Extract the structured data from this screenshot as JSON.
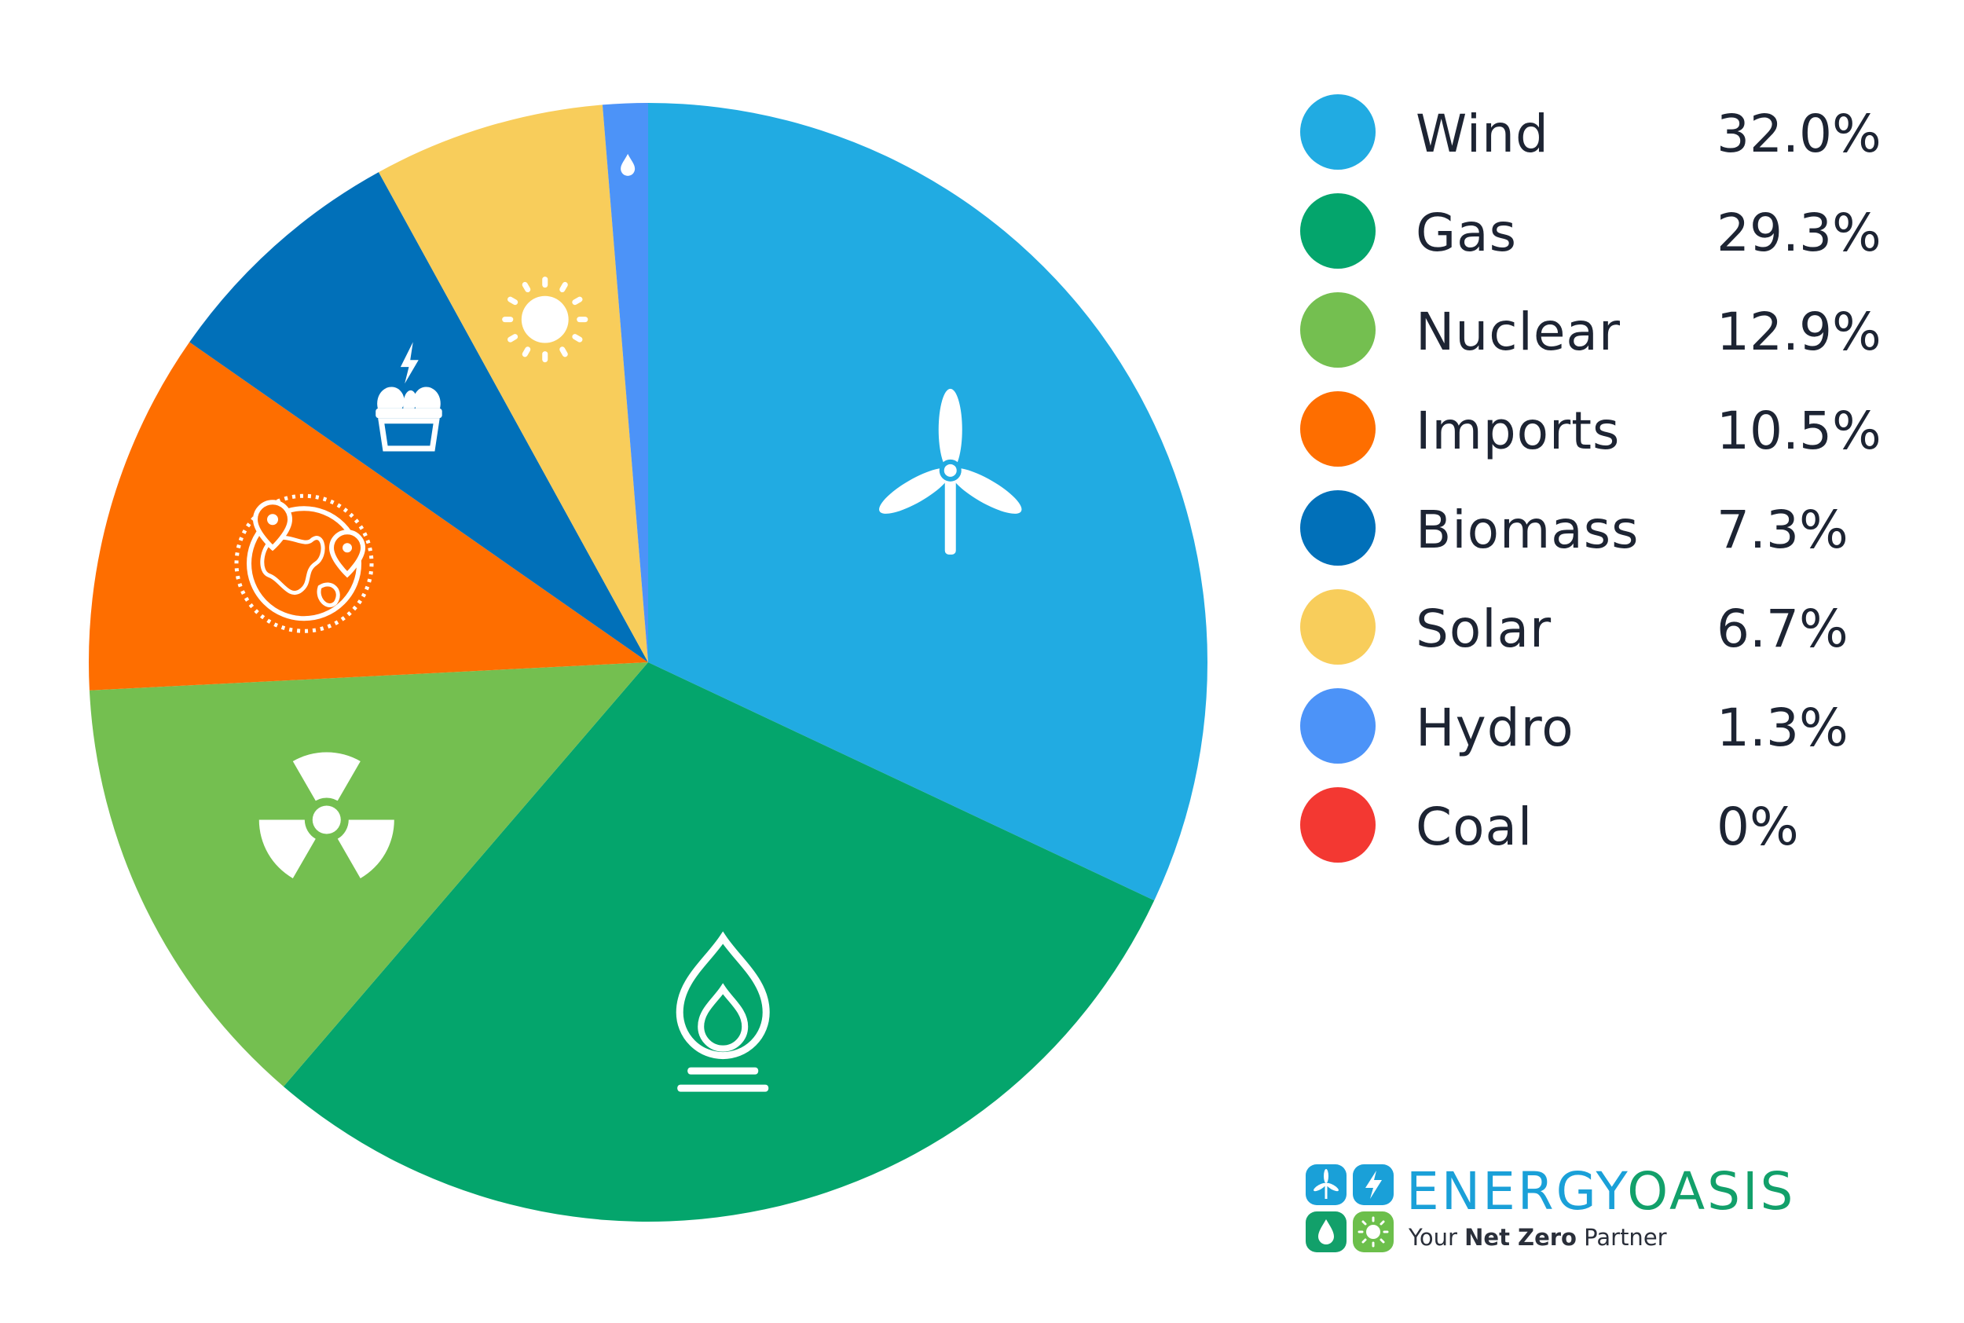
{
  "chart_data": {
    "type": "pie",
    "slices": [
      {
        "label": "Wind",
        "value": 32.0,
        "display": "32.0%",
        "color": "#21abe2",
        "icon": "wind-turbine-icon"
      },
      {
        "label": "Gas",
        "value": 29.3,
        "display": "29.3%",
        "color": "#04a56c",
        "icon": "gas-flame-icon"
      },
      {
        "label": "Nuclear",
        "value": 12.9,
        "display": "12.9%",
        "color": "#74bf50",
        "icon": "radiation-icon"
      },
      {
        "label": "Imports",
        "value": 10.5,
        "display": "10.5%",
        "color": "#fe6e00",
        "icon": "globe-pins-icon"
      },
      {
        "label": "Biomass",
        "value": 7.3,
        "display": "7.3%",
        "color": "#0170b9",
        "icon": "biomass-plant-icon"
      },
      {
        "label": "Solar",
        "value": 6.7,
        "display": "6.7%",
        "color": "#f8cd5b",
        "icon": "sun-icon"
      },
      {
        "label": "Hydro",
        "value": 1.3,
        "display": "1.3%",
        "color": "#4c93f8",
        "icon": "water-drop-icon"
      },
      {
        "label": "Coal",
        "value": 0,
        "display": "0%",
        "color": "#f33832",
        "icon": ""
      }
    ],
    "legend_position": "right",
    "start_angle": "top, clockwise"
  },
  "brand": {
    "name_part1": "ENERGY",
    "name_part2": "OASIS",
    "tag_pre": "Your ",
    "tag_bold": "Net Zero",
    "tag_post": " Partner"
  }
}
